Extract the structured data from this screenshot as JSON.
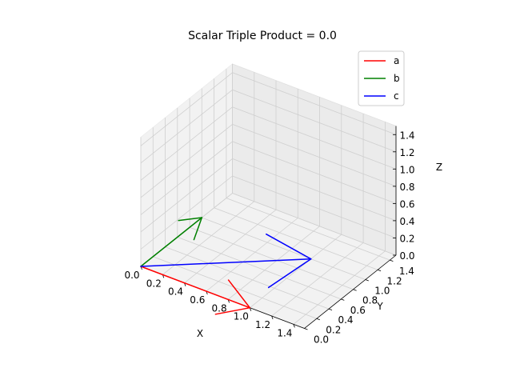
{
  "chart_data": {
    "type": "line",
    "title": "Scalar Triple Product = 0.0",
    "xlabel": "X",
    "ylabel": "Y",
    "zlabel": "Z",
    "xlim": [
      0,
      1.5
    ],
    "ylim": [
      0,
      1.5
    ],
    "zlim": [
      0,
      1.5
    ],
    "x_ticks": [
      "0.0",
      "0.2",
      "0.4",
      "0.6",
      "0.8",
      "1.0",
      "1.2",
      "1.4"
    ],
    "y_ticks": [
      "0.0",
      "0.2",
      "0.4",
      "0.6",
      "0.8",
      "1.0",
      "1.2",
      "1.4"
    ],
    "z_ticks": [
      "0.0",
      "0.2",
      "0.4",
      "0.6",
      "0.8",
      "1.0",
      "1.2",
      "1.4"
    ],
    "grid": true,
    "legend_position": "top-right",
    "series": [
      {
        "name": "a",
        "color": "#ff0000",
        "start": [
          0,
          0,
          0
        ],
        "vector": [
          1,
          0,
          0
        ]
      },
      {
        "name": "b",
        "color": "#008000",
        "start": [
          0,
          0,
          0
        ],
        "vector": [
          0,
          1,
          0
        ]
      },
      {
        "name": "c",
        "color": "#0000ff",
        "start": [
          0,
          0,
          0
        ],
        "vector": [
          1,
          1,
          0
        ]
      }
    ]
  }
}
